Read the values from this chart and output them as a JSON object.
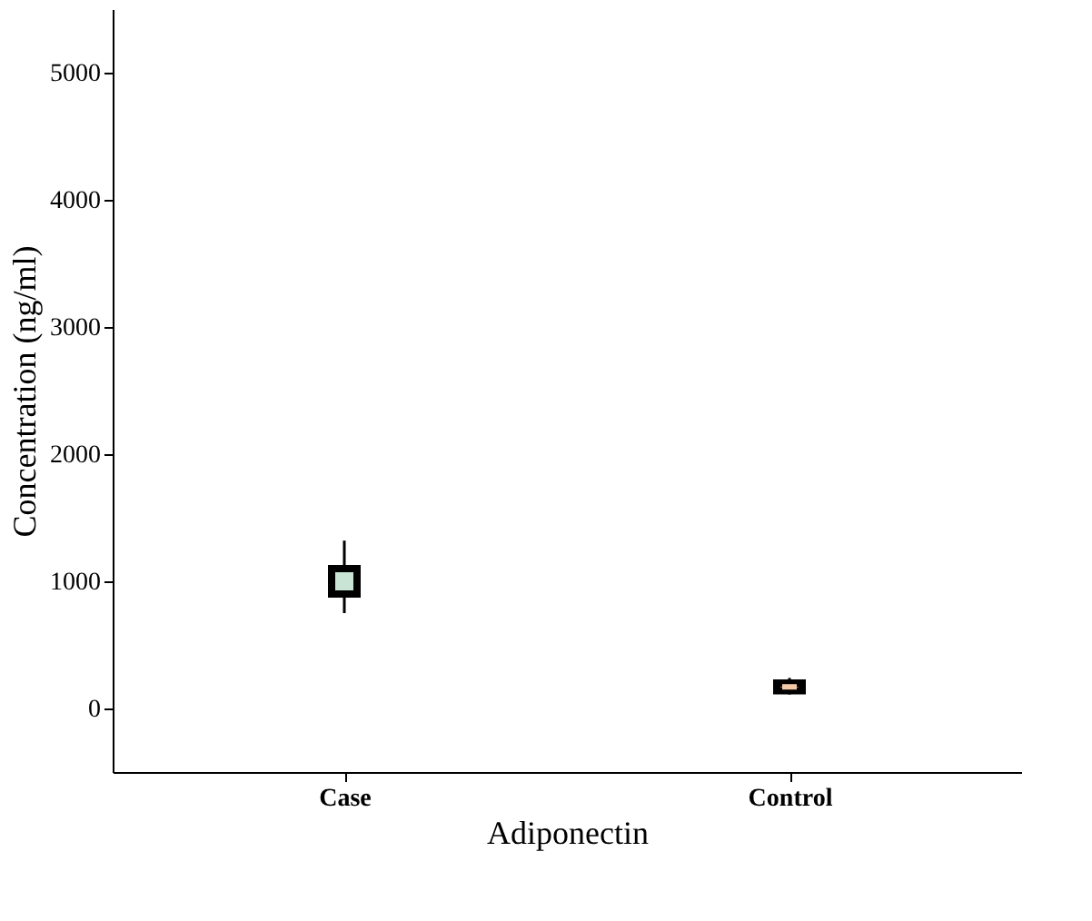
{
  "chart_data": {
    "type": "box",
    "xlabel": "Adiponectin",
    "ylabel": "Concentration (ng/ml)",
    "categories": [
      "Case",
      "Control"
    ],
    "boxes": [
      {
        "low": 750,
        "q1": 900,
        "median": 1000,
        "q3": 1100,
        "high": 1320
      },
      {
        "low": 110,
        "q1": 140,
        "median": 170,
        "q3": 200,
        "high": 240
      }
    ],
    "colors": [
      "#c9e4d4",
      "#f4c9a8"
    ],
    "ylim": [
      -500,
      5500
    ],
    "yticks": [
      0,
      1000,
      2000,
      3000,
      4000,
      5000
    ],
    "grid": false
  }
}
